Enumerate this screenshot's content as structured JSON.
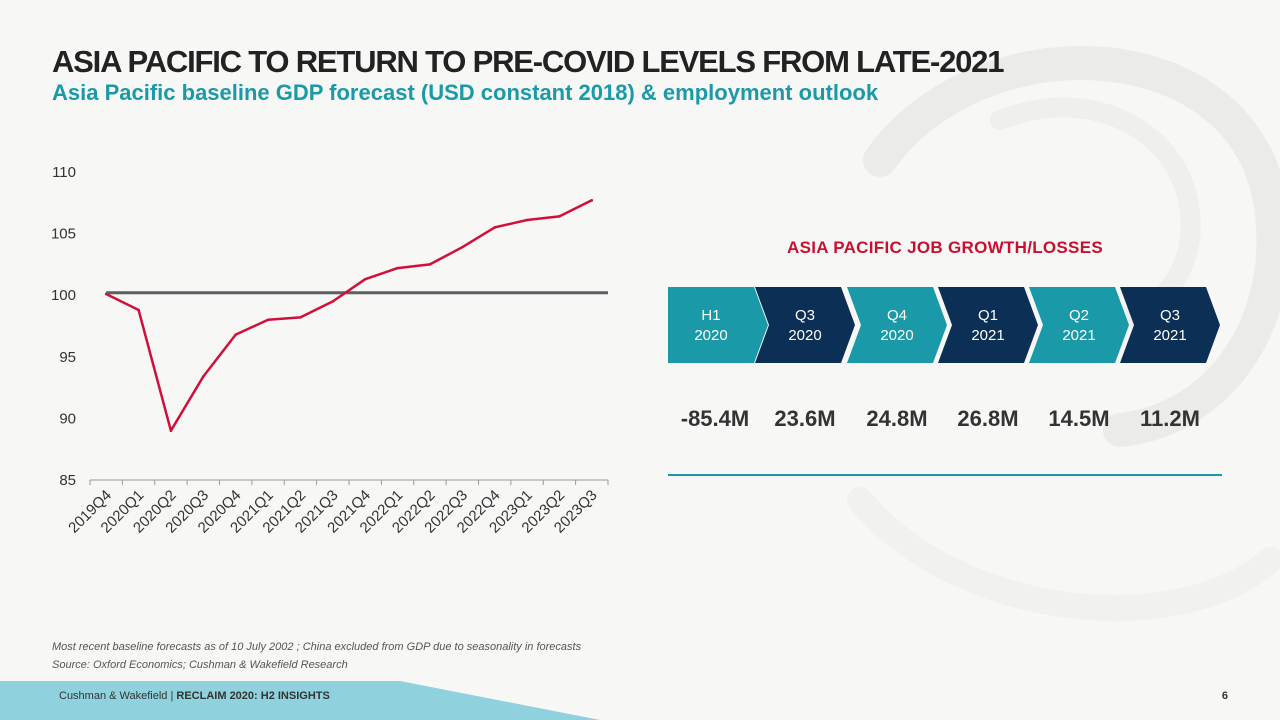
{
  "slide": {
    "title": "ASIA PACIFIC TO RETURN TO PRE-COVID LEVELS FROM LATE-2021",
    "subtitle": "Asia Pacific baseline GDP forecast (USD constant 2018) & employment outlook"
  },
  "chart_data": {
    "type": "line",
    "title": "",
    "xlabel": "",
    "ylabel": "",
    "categories": [
      "2019Q4",
      "2020Q1",
      "2020Q2",
      "2020Q3",
      "2020Q4",
      "2021Q1",
      "2021Q2",
      "2021Q3",
      "2021Q4",
      "2022Q1",
      "2022Q2",
      "2022Q3",
      "2022Q4",
      "2023Q1",
      "2023Q2",
      "2023Q3"
    ],
    "series": [
      {
        "values": [
          100.1,
          98.8,
          89.0,
          93.4,
          96.8,
          98.0,
          98.2,
          99.5,
          101.3,
          102.2,
          102.5,
          103.9,
          105.5,
          106.1,
          106.4,
          107.7
        ],
        "color": "#d0103a"
      }
    ],
    "reference_line": {
      "value": 100.2,
      "color": "#5f5f62"
    },
    "ylim": [
      85,
      110
    ],
    "yticks": [
      85,
      90,
      95,
      100,
      105,
      110
    ],
    "grid": false,
    "legend": "none"
  },
  "jobs": {
    "title": "ASIA PACIFIC JOB GROWTH/LOSSES",
    "periods": [
      {
        "line1": "H1",
        "line2": "2020",
        "value": "-85.4M",
        "color": "#1a9aa8"
      },
      {
        "line1": "Q3",
        "line2": "2020",
        "value": "23.6M",
        "color": "#0c2f55"
      },
      {
        "line1": "Q4",
        "line2": "2020",
        "value": "24.8M",
        "color": "#1a9aa8"
      },
      {
        "line1": "Q1",
        "line2": "2021",
        "value": "26.8M",
        "color": "#0c2f55"
      },
      {
        "line1": "Q2",
        "line2": "2021",
        "value": "14.5M",
        "color": "#1a9aa8"
      },
      {
        "line1": "Q3",
        "line2": "2021",
        "value": "11.2M",
        "color": "#0c2f55"
      }
    ]
  },
  "footnotes": {
    "note": "Most recent baseline forecasts as of 10 July 2002 ; China excluded from GDP due to seasonality in forecasts",
    "source": "Source: Oxford Economics; Cushman & Wakefield Research"
  },
  "footer": {
    "brand": "Cushman & Wakefield",
    "separator": " | ",
    "section": "RECLAIM 2020: H2 INSIGHTS",
    "page": "6",
    "bar_color": "#8fd1dc"
  }
}
